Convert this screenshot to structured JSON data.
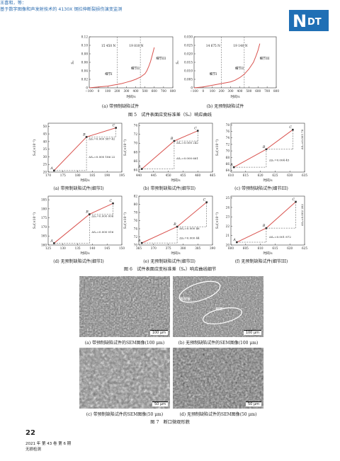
{
  "header": {
    "authors": "王喜和，等：",
    "title": "基于数字图像和声发射技术的 4130X 钢拉伸断裂损伤演变监测",
    "logo_text": "NDT"
  },
  "figure5": {
    "caption": "图 5　试件表面应变标准差（Sₓ）响应曲线",
    "xlabel": "时间/s",
    "ylabel": "Sₓ",
    "panels": [
      {
        "caption": "(a) 带预制缺陷试件",
        "xticks": [
          "−100",
          "0",
          "100",
          "200",
          "300",
          "400",
          "500",
          "600",
          "700",
          "800"
        ],
        "yticks": [
          "0",
          "0.02",
          "0.04",
          "0.06",
          "0.08",
          "0.10",
          "0.12"
        ],
        "force_labels": [
          "15 450 N",
          "19 810 N"
        ],
        "segment_labels": [
          "细节I",
          "细节II",
          "细节III"
        ]
      },
      {
        "caption": "(b) 无预制缺陷试件",
        "xticks": [
          "−100",
          "0",
          "100",
          "200",
          "300",
          "400",
          "500",
          "600",
          "700",
          "800"
        ],
        "yticks": [
          "0",
          "0.005",
          "0.010",
          "0.015",
          "0.020",
          "0.025",
          "0.030"
        ],
        "force_labels": [
          "14 675 N",
          "19 140 N"
        ],
        "segment_labels": [
          "细节I",
          "细节II",
          "细节III"
        ]
      }
    ],
    "chart_data": [
      {
        "type": "line",
        "x": [
          -100,
          0,
          100,
          150,
          200,
          250,
          300,
          350,
          400,
          450,
          500,
          520,
          540,
          560,
          580,
          600
        ],
        "series": [
          {
            "values": [
              0,
              0.002,
              0.004,
              0.006,
              0.008,
              0.01,
              0.013,
              0.016,
              0.02,
              0.025,
              0.033,
              0.04,
              0.05,
              0.062,
              0.078,
              0.095
            ]
          }
        ],
        "xlim": [
          -100,
          800
        ],
        "ylim": [
          0,
          0.12
        ]
      },
      {
        "type": "line",
        "x": [
          -100,
          0,
          100,
          200,
          300,
          350,
          400,
          450,
          500,
          550,
          580,
          600,
          610,
          620
        ],
        "series": [
          {
            "values": [
              0,
              0.0005,
              0.0015,
              0.0025,
              0.0035,
              0.0045,
              0.006,
              0.008,
              0.011,
              0.015,
              0.019,
              0.022,
              0.024,
              0.026
            ]
          }
        ],
        "xlim": [
          -100,
          800
        ],
        "ylim": [
          0,
          0.03
        ]
      }
    ]
  },
  "figure6": {
    "caption": "图 6　试件表面应变标准差（Sₓ）响应曲线细节",
    "xlabel": "时间/s",
    "ylabel": "Sₓ/(×10⁻³)",
    "panels": [
      {
        "caption": "(a) 带预制缺陷试件(细节I)",
        "xticks": [
          "170",
          "175",
          "180",
          "185",
          "190",
          "195"
        ],
        "yticks": [
          "20",
          "25",
          "30",
          "35",
          "40",
          "45",
          "50"
        ],
        "annot": [
          "ΔSₓ=0.000 587 42",
          "ΔSₓ=0.000 186 22"
        ]
      },
      {
        "caption": "(b) 带预制缺陷试件(细节II)",
        "xticks": [
          "440",
          "445",
          "450",
          "455",
          "460",
          "465"
        ],
        "yticks": [
          "64",
          "66",
          "68",
          "70",
          "72",
          "74"
        ],
        "annot": [
          "ΔSₓ=0.000 242",
          "ΔSₓ=0.000 661"
        ]
      },
      {
        "caption": "(c) 带预制缺陷试件(细节III)",
        "xticks": [
          "610",
          "615",
          "620",
          "625",
          "630",
          "635"
        ],
        "yticks": [
          "64",
          "66",
          "68",
          "70",
          "72",
          "74",
          "76",
          "78"
        ],
        "annot": [
          "ΔSₓ=0.005 78",
          "ΔSₓ=0.004 45"
        ]
      },
      {
        "caption": "(d) 无预制缺陷试件(细节I)",
        "xticks": [
          "125",
          "130",
          "135",
          "140",
          "145",
          "150"
        ],
        "yticks": [
          "160",
          "165",
          "170",
          "175",
          "180",
          "185"
        ],
        "annot": [
          "ΔSₓ=0.000 006",
          "ΔSₓ=0.000 016"
        ]
      },
      {
        "caption": "(e) 无预制缺陷试件(细节II)",
        "xticks": [
          "365",
          "370",
          "375",
          "380",
          "385",
          "390"
        ],
        "yticks": [
          "70",
          "72",
          "74",
          "76",
          "78",
          "80",
          "82"
        ],
        "annot": [
          "ΔSₓ=0.000 46",
          "ΔSₓ=0.000 44"
        ]
      },
      {
        "caption": "(f) 无预制缺陷试件(细节III)",
        "xticks": [
          "600",
          "605",
          "610",
          "615",
          "620",
          "625"
        ],
        "yticks": [
          "20",
          "21",
          "22",
          "23",
          "24",
          "25"
        ],
        "annot": [
          "ΔSₓ=0.002 282",
          "ΔSₓ=0.001 872"
        ]
      }
    ],
    "point_labels": [
      "A",
      "B",
      "C"
    ],
    "chart_data": [
      {
        "type": "line",
        "x": [
          172,
          183,
          193
        ],
        "series": [
          {
            "values": [
              21,
              43,
              49
            ]
          }
        ],
        "xlim": [
          170,
          195
        ],
        "ylim": [
          20,
          52
        ]
      },
      {
        "type": "line",
        "x": [
          441,
          452,
          460
        ],
        "series": [
          {
            "values": [
              64.2,
              70.5,
              72.8
            ]
          }
        ],
        "xlim": [
          440,
          465
        ],
        "ylim": [
          63.5,
          74.5
        ]
      },
      {
        "type": "line",
        "x": [
          611,
          622,
          631
        ],
        "series": [
          {
            "values": [
              65,
              70.5,
              76.5
            ]
          }
        ],
        "xlim": [
          610,
          635
        ],
        "ylim": [
          63.5,
          78.5
        ]
      },
      {
        "type": "line",
        "x": [
          127,
          139,
          147
        ],
        "series": [
          {
            "values": [
              161,
              177,
              183
            ]
          }
        ],
        "xlim": [
          125,
          150
        ],
        "ylim": [
          160,
          187
        ]
      },
      {
        "type": "line",
        "x": [
          366,
          378,
          388
        ],
        "series": [
          {
            "values": [
              70.5,
              74.5,
              80.5
            ]
          }
        ],
        "xlim": [
          365,
          390
        ],
        "ylim": [
          70,
          82
        ]
      },
      {
        "type": "line",
        "x": [
          602,
          612,
          622
        ],
        "series": [
          {
            "values": [
              20.3,
              21.8,
              24.6
            ]
          }
        ],
        "xlim": [
          600,
          625
        ],
        "ylim": [
          20,
          25.2
        ]
      }
    ]
  },
  "figure7": {
    "caption": "图 7　断口微观形貌",
    "panels": [
      {
        "caption": "(a) 带预制缺陷试件的SEM图像(100 μm)",
        "scale": "100 μm"
      },
      {
        "caption": "(b) 无预制缺陷试件的SEM图像(100 μm)",
        "scale": "100 μm",
        "labels": [
          "撕裂棱",
          "韧窝"
        ]
      },
      {
        "caption": "(c) 带预制缺陷试件的SEM图像(50 μm)",
        "scale": "50 μm"
      },
      {
        "caption": "(d) 无预制缺陷试件的SEM图像(50 μm)",
        "scale": "50 μm"
      }
    ]
  },
  "footer": {
    "page_number": "22",
    "issue": "2021 年 第 43 卷 第 6 期",
    "journal": "无损检测"
  },
  "colors": {
    "accent": "#1f6fb5",
    "line": "#d9534f",
    "text": "#222222"
  }
}
